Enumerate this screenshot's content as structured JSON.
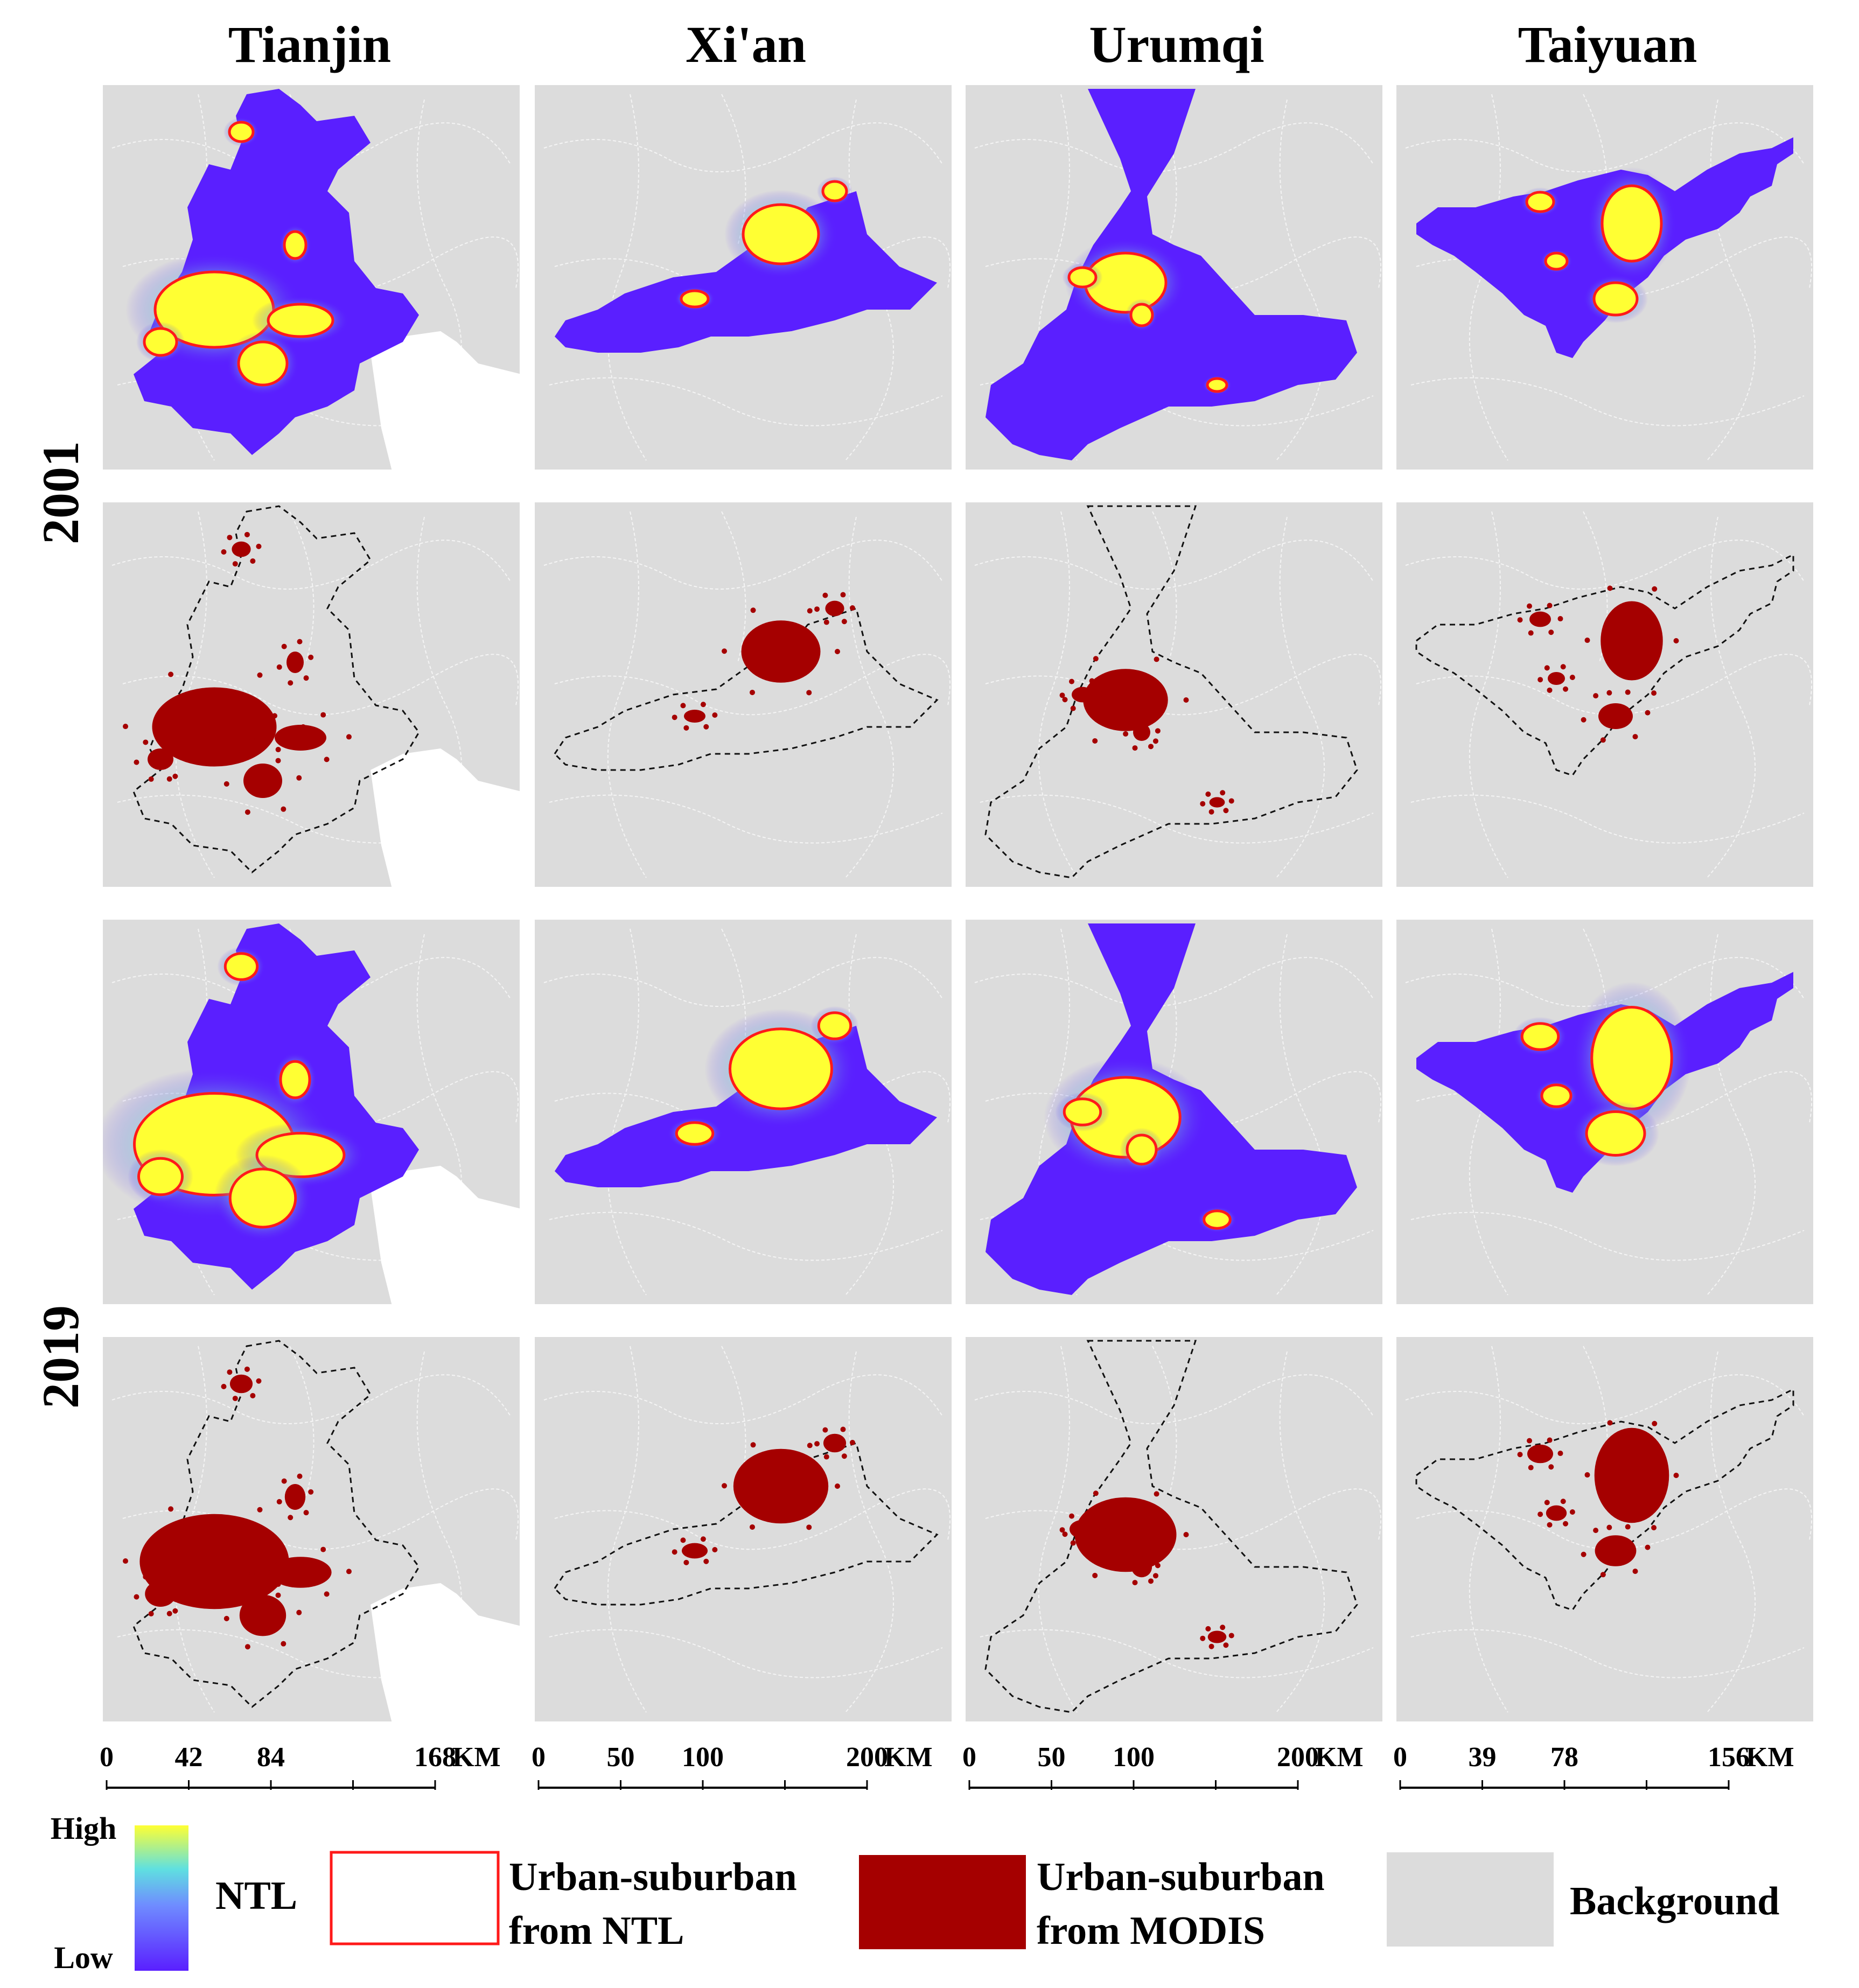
{
  "figure": {
    "cities": [
      "Tianjin",
      "Xi'an",
      "Urumqi",
      "Taiyuan"
    ],
    "years": [
      "2001",
      "2019"
    ]
  },
  "scalebars": [
    {
      "ticks": [
        "0",
        "42",
        "84",
        "168"
      ],
      "tick_values": [
        0,
        42,
        84,
        168
      ],
      "max": 168,
      "unit": "KM"
    },
    {
      "ticks": [
        "0",
        "50",
        "100",
        "200"
      ],
      "tick_values": [
        0,
        50,
        100,
        200
      ],
      "max": 200,
      "unit": "KM"
    },
    {
      "ticks": [
        "0",
        "50",
        "100",
        "200"
      ],
      "tick_values": [
        0,
        50,
        100,
        200
      ],
      "max": 200,
      "unit": "KM"
    },
    {
      "ticks": [
        "0",
        "39",
        "78",
        "156"
      ],
      "tick_values": [
        0,
        39,
        78,
        156
      ],
      "max": 156,
      "unit": "KM"
    }
  ],
  "legend": {
    "ntl_high": "High",
    "ntl_low": "Low",
    "ntl_label": "NTL",
    "urban_ntl_line1": "Urban-suburban",
    "urban_ntl_line2": "from NTL",
    "urban_modis_line1": "Urban-suburban",
    "urban_modis_line2": "from MODIS",
    "background_label": "Background"
  },
  "colors": {
    "background": "#dcdcdc",
    "ntl_low": "#5a1fff",
    "ntl_mid": "#3fd6e6",
    "ntl_high": "#ffff33",
    "ntl_outline": "#ff1a1a",
    "modis_urban": "#a50000",
    "sea": "#ffffff"
  }
}
